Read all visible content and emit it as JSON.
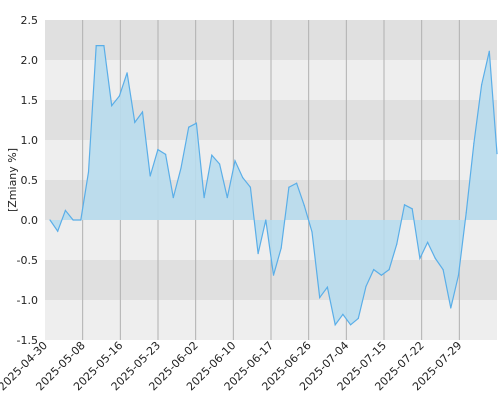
{
  "chart_data": {
    "type": "area",
    "ylabel": "[Zmiany %]",
    "ylim": [
      -1.5,
      2.5
    ],
    "y_ticks": [
      2.5,
      2.0,
      1.5,
      1.0,
      0.5,
      0.0,
      -0.5,
      -1.0,
      -1.5
    ],
    "y_tick_labels": [
      "2.5",
      "2.0",
      "1.5",
      "1.0",
      "0.5",
      "0.0",
      "-0.5",
      "-1.0",
      "-1.5"
    ],
    "x_tick_labels": [
      "2025-04-30",
      "2025-05-08",
      "2025-05-16",
      "2025-05-23",
      "2025-06-02",
      "2025-06-10",
      "2025-06-17",
      "2025-06-26",
      "2025-07-04",
      "2025-07-15",
      "2025-07-22",
      "2025-07-29"
    ],
    "band_colors": [
      "#e0e0e0",
      "#eeeeee"
    ],
    "line_color": "#5aaee8",
    "fill_color": "#b8dced",
    "grid": true,
    "legend": "none",
    "series": [
      {
        "values": [
          0.0,
          -0.14,
          0.12,
          0.0,
          0.0,
          0.6,
          2.18,
          2.18,
          1.43,
          1.55,
          1.84,
          1.22,
          1.35,
          0.55,
          0.88,
          0.82,
          0.28,
          0.65,
          1.16,
          1.21,
          0.28,
          0.81,
          0.7,
          0.28,
          0.74,
          0.53,
          0.41,
          -0.42,
          0.0,
          -0.69,
          -0.35,
          0.41,
          0.46,
          0.18,
          -0.15,
          -0.97,
          -0.84,
          -1.31,
          -1.18,
          -1.31,
          -1.23,
          -0.83,
          -0.62,
          -0.69,
          -0.62,
          -0.3,
          0.19,
          0.14,
          -0.48,
          -0.28,
          -0.48,
          -0.62,
          -1.1,
          -0.69,
          0.09,
          0.96,
          1.69,
          2.11,
          0.83
        ]
      }
    ]
  }
}
